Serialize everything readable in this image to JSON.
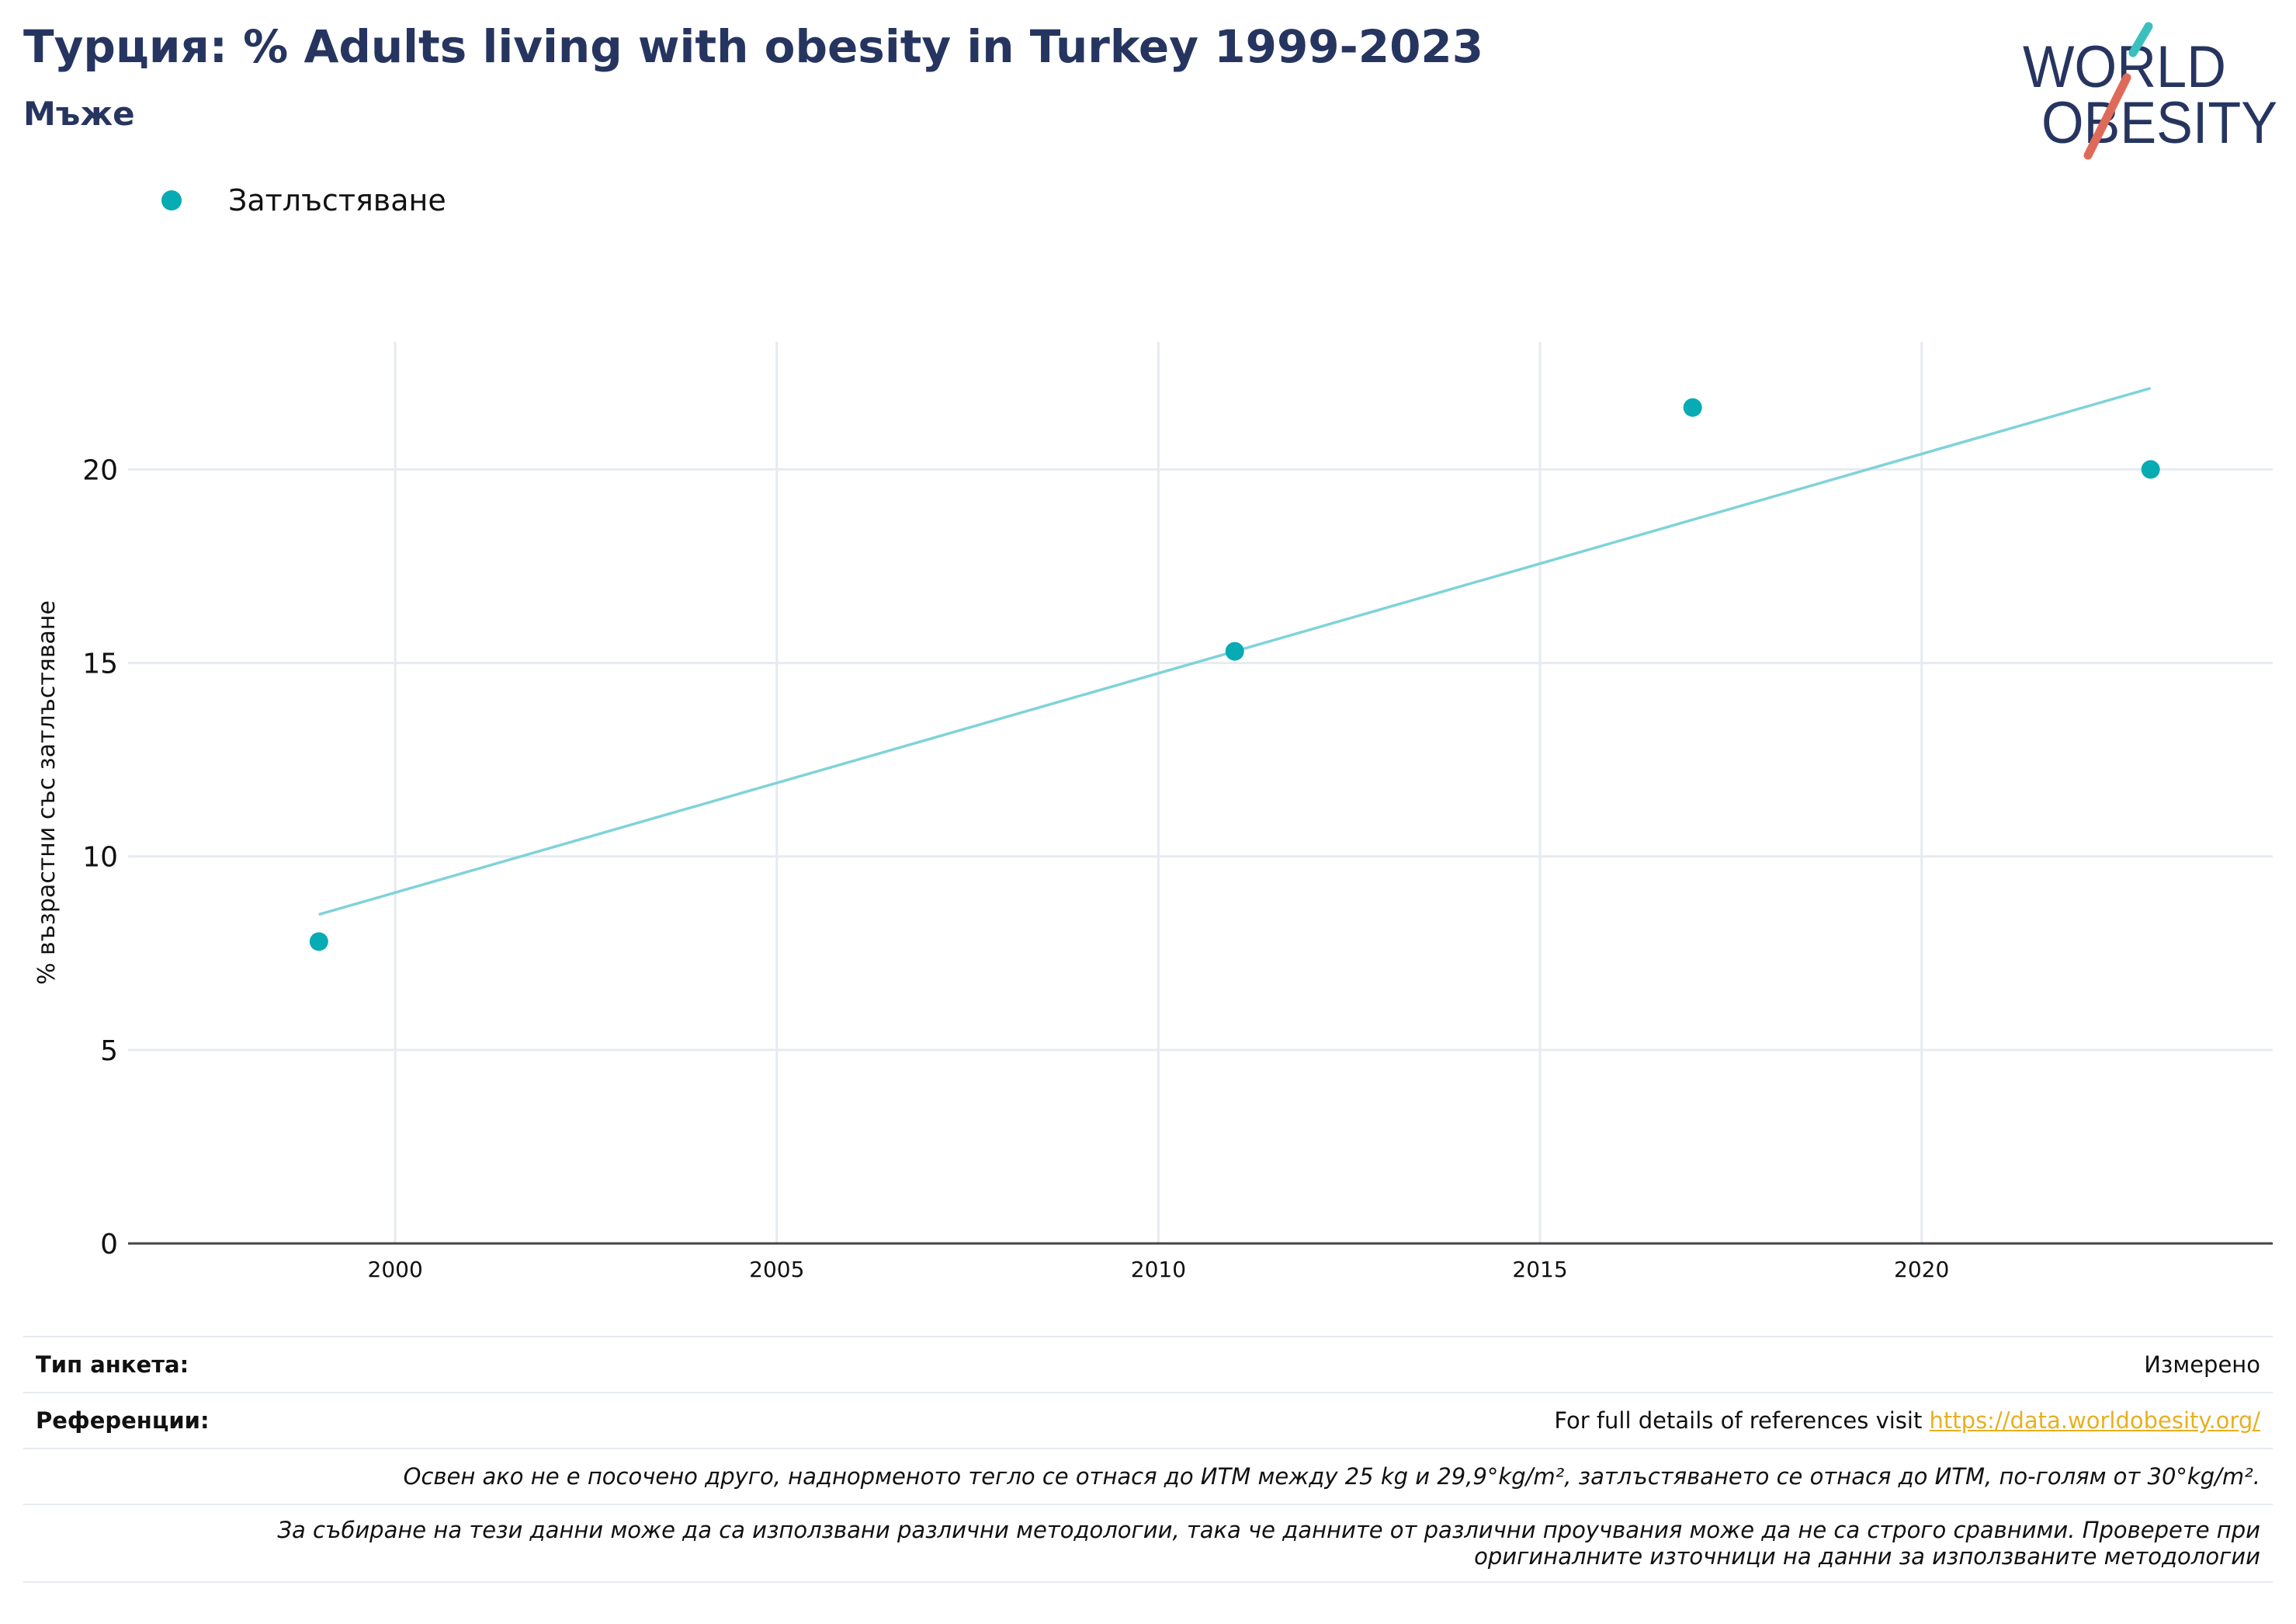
{
  "header": {
    "title": "Турция: % Adults living with obesity in Turkey 1999-2023",
    "subtitle": "Мъже",
    "logo_line1": "WORLD",
    "logo_line2": "OBESITY"
  },
  "legend": {
    "label": "Затлъстяване",
    "color": "#07abb3"
  },
  "chart_data": {
    "type": "scatter",
    "series": [
      {
        "name": "Затлъстяване",
        "points": [
          {
            "x": 1999,
            "y": 7.8
          },
          {
            "x": 2011,
            "y": 15.3
          },
          {
            "x": 2017,
            "y": 21.6
          },
          {
            "x": 2023,
            "y": 20.0
          }
        ],
        "color": "#07abb3"
      }
    ],
    "trendline": {
      "from": {
        "x": 1999,
        "y": 8.5
      },
      "to": {
        "x": 2023,
        "y": 22.1
      },
      "color": "#7fd3d8"
    },
    "xlim": [
      1996.5,
      2024.6
    ],
    "ylim": [
      0,
      23.3
    ],
    "xticks": [
      2000,
      2005,
      2010,
      2015,
      2020
    ],
    "yticks": [
      0,
      5,
      10,
      15,
      20
    ],
    "ylabel": "% възрастни със затлъстяване",
    "xlabel": "",
    "grid": true
  },
  "footer": {
    "survey_type_label": "Тип анкета:",
    "survey_type_value": "Измерено",
    "references_label": "Референции:",
    "references_text": "For full details of references visit ",
    "references_link": "https://data.worldobesity.org/",
    "note1": "Освен ако не е посочено друго, наднорменото тегло се отнася до ИТМ между 25 kg и 29,9°kg/m², затлъстяването се отнася до ИТМ, по-голям от 30°kg/m².",
    "note2_line1": "За събиране на тези данни може да са използвани различни методологии, така че данните от различни проучвания може да не са строго сравними. Проверете при",
    "note2_line2": "оригиналните източници на данни за използваните методологии"
  }
}
